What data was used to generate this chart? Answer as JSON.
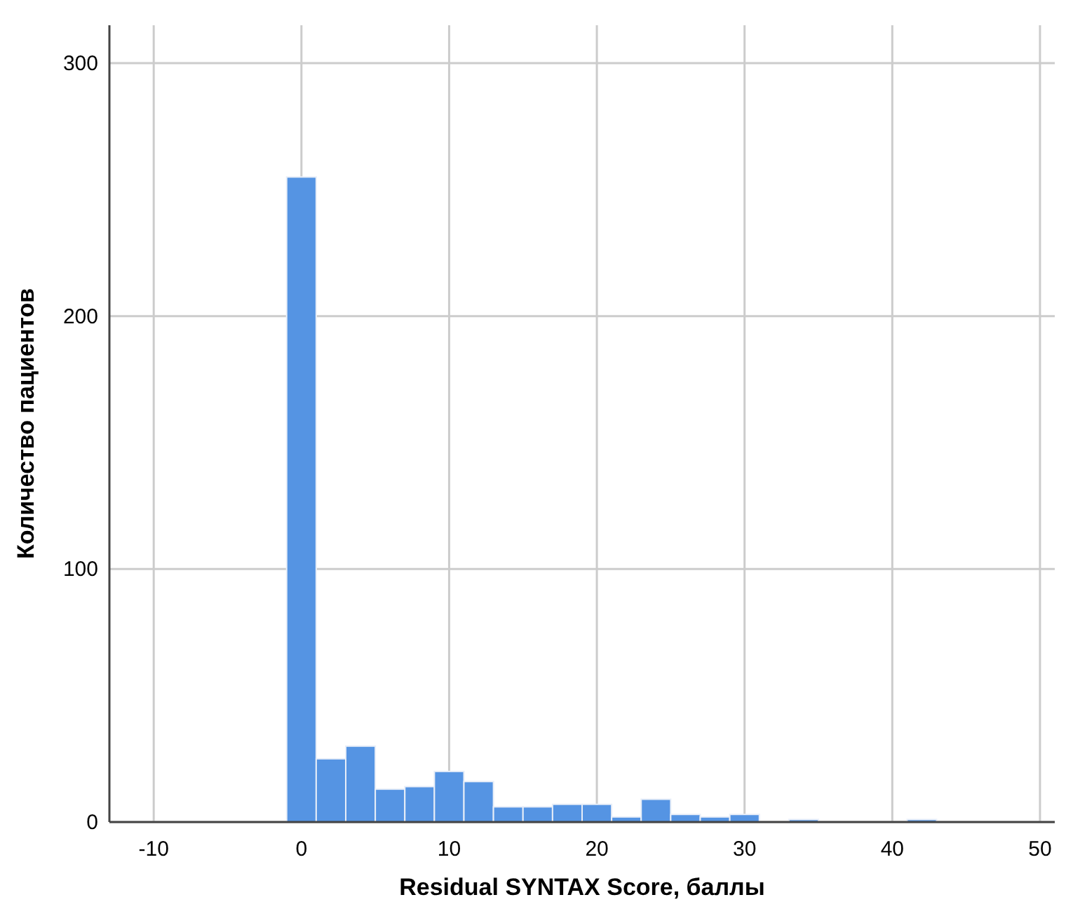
{
  "chart_data": {
    "type": "histogram",
    "xlabel": "Residual SYNTAX Score, баллы",
    "ylabel": "Количество пациентов",
    "bins": [
      -1,
      1,
      3,
      5,
      7,
      9,
      11,
      13,
      15,
      17,
      19,
      21,
      23,
      25,
      27,
      29,
      31,
      33,
      35,
      37,
      39,
      41,
      43
    ],
    "values": [
      255,
      25,
      30,
      13,
      14,
      20,
      16,
      6,
      6,
      7,
      7,
      2,
      9,
      3,
      2,
      3,
      0,
      1,
      0,
      0,
      0,
      1
    ],
    "color": "#5594e3",
    "xlim": [
      -13,
      51
    ],
    "ylim": [
      0,
      315
    ],
    "xticks": [
      -10,
      0,
      10,
      20,
      30,
      40,
      50
    ],
    "yticks": [
      0,
      100,
      200,
      300
    ],
    "grid": true
  }
}
